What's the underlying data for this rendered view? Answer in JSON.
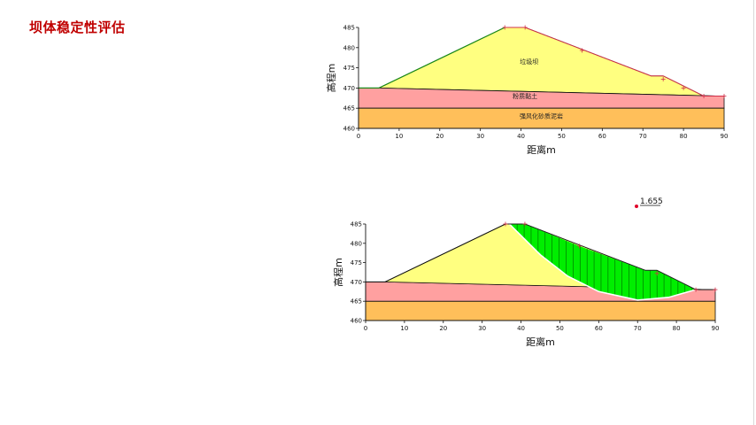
{
  "page": {
    "title": "坝体稳定性评估"
  },
  "colors": {
    "dam": "#ffff80",
    "clay": "#ffa0a0",
    "rock": "#ffbf5a",
    "slip": "#00ee00",
    "slope_line": "#d0304a",
    "top_line": "#1a8a1a"
  },
  "chart_data": [
    {
      "type": "section",
      "name": "dam-profile",
      "xlabel": "距离m",
      "ylabel": "高程m",
      "xlim": [
        0,
        90
      ],
      "ylim": [
        460,
        485
      ],
      "xticks": [
        "0",
        "10",
        "20",
        "30",
        "40",
        "50",
        "60",
        "70",
        "80",
        "90"
      ],
      "yticks": [
        "460",
        "465",
        "470",
        "475",
        "480",
        "485"
      ],
      "layers": [
        {
          "name": "垃圾坝",
          "polygon": [
            [
              5,
              470
            ],
            [
              36,
              485
            ],
            [
              41,
              485
            ],
            [
              72,
              473
            ],
            [
              75,
              473
            ],
            [
              85,
              468
            ],
            [
              89,
              468
            ],
            [
              5,
              470
            ]
          ]
        },
        {
          "name": "粉质黏土",
          "polygon": [
            [
              0,
              470
            ],
            [
              5,
              470
            ],
            [
              89,
              468
            ],
            [
              90,
              468
            ],
            [
              90,
              465
            ],
            [
              0,
              465
            ]
          ]
        },
        {
          "name": "强风化砂质泥岩",
          "polygon": [
            [
              0,
              465
            ],
            [
              90,
              465
            ],
            [
              90,
              460
            ],
            [
              0,
              460
            ]
          ]
        }
      ],
      "labels": [
        {
          "text": "垃圾坝",
          "x": 42,
          "y": 476
        },
        {
          "text": "粉质黏土",
          "x": 41,
          "y": 467.5
        },
        {
          "text": "强风化砂质泥岩",
          "x": 45,
          "y": 462.5
        }
      ],
      "slope_markers": [
        [
          36,
          485
        ],
        [
          41,
          485
        ],
        [
          55,
          479.3
        ],
        [
          75,
          472.2
        ],
        [
          80,
          470
        ],
        [
          85,
          468
        ],
        [
          90,
          468
        ]
      ]
    },
    {
      "type": "section",
      "name": "slip-analysis",
      "xlabel": "距离m",
      "ylabel": "高程m",
      "xlim": [
        0,
        90
      ],
      "ylim": [
        460,
        485
      ],
      "xticks": [
        "0",
        "10",
        "20",
        "30",
        "40",
        "50",
        "60",
        "70",
        "80",
        "90"
      ],
      "yticks": [
        "460",
        "465",
        "470",
        "475",
        "480",
        "485"
      ],
      "factor_of_safety": "1.655",
      "slip_surface": [
        [
          37,
          485
        ],
        [
          45,
          477
        ],
        [
          52,
          471.5
        ],
        [
          60,
          467.5
        ],
        [
          70,
          465.3
        ],
        [
          78,
          466
        ],
        [
          85,
          468
        ]
      ],
      "slope_top": [
        [
          37,
          485
        ],
        [
          41,
          485
        ],
        [
          55,
          479.3
        ],
        [
          72,
          473
        ],
        [
          75,
          473
        ],
        [
          85,
          468
        ]
      ],
      "slope_markers": [
        [
          36,
          485
        ],
        [
          41,
          485
        ],
        [
          55,
          479.3
        ],
        [
          75,
          472.2
        ],
        [
          85,
          468
        ],
        [
          90,
          468
        ]
      ]
    }
  ]
}
